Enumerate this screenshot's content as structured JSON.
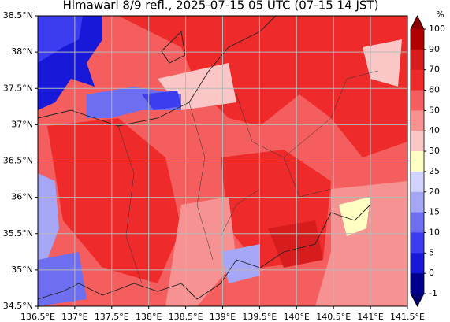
{
  "title": "Himawari 8/9 refl., 2025-07-15 05 UTC (07-15 14 JST)",
  "map": {
    "lon_ticks": [
      "136.5°E",
      "137°E",
      "137.5°E",
      "138°E",
      "138.5°E",
      "139°E",
      "139.5°E",
      "140°E",
      "140.5°E",
      "141°E",
      "141.5°E"
    ],
    "lat_ticks": [
      "38.5°N",
      "38°N",
      "37.5°N",
      "37°N",
      "36.5°N",
      "36°N",
      "35.5°N",
      "35°N",
      "34.5°N"
    ]
  },
  "colorbar": {
    "unit": "%",
    "levels": [
      100,
      90,
      70,
      60,
      50,
      40,
      30,
      25,
      20,
      15,
      10,
      5,
      0,
      -1
    ],
    "colors": [
      "#8b0000",
      "#b00000",
      "#d61c1c",
      "#ee2a2a",
      "#f45e5e",
      "#f79292",
      "#fbc6c6",
      "#ffffc4",
      "#d2d2ff",
      "#a6a6f6",
      "#6e6ef0",
      "#3c3cf0",
      "#1818d8",
      "#00008c",
      "#000070"
    ]
  }
}
